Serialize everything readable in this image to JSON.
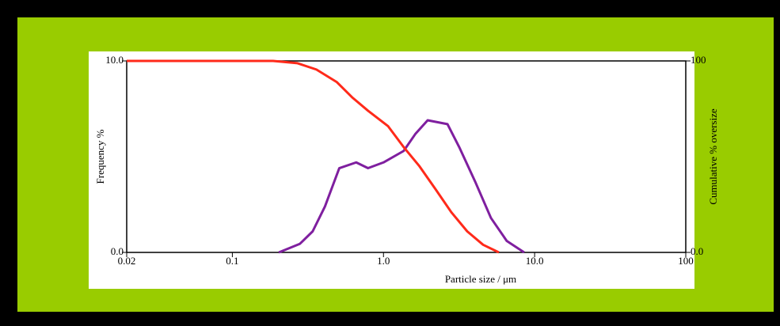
{
  "chart_data": {
    "type": "line",
    "xlabel": "Particle size / μm",
    "ylabel": "Frequency %",
    "y2label": "Cumulative % oversize",
    "xscale": "log",
    "xlim": [
      0.02,
      100
    ],
    "xticks": [
      0.02,
      0.1,
      {
        "value": 1,
        "label": "1.0"
      },
      {
        "value": 10,
        "label": "10.0"
      },
      100
    ],
    "ylim": [
      0,
      10
    ],
    "yticks": [
      {
        "value": 0,
        "label": "0.0"
      },
      {
        "value": 10,
        "label": "10.0"
      }
    ],
    "y2lim": [
      0,
      100
    ],
    "y2ticks": [
      {
        "value": 0,
        "label": "0.0"
      },
      100
    ],
    "series": [
      {
        "color": "#7f1f9f",
        "axis": "y",
        "x": [
          0.203,
          0.28,
          0.34,
          0.41,
          0.51,
          0.66,
          0.79,
          1.0,
          1.36,
          1.63,
          1.96,
          2.65,
          3.17,
          4.04,
          5.14,
          6.54,
          8.53
        ],
        "values": [
          0,
          0.45,
          1.1,
          2.4,
          4.4,
          4.7,
          4.4,
          4.7,
          5.3,
          6.2,
          6.9,
          6.7,
          5.5,
          3.7,
          1.8,
          0.6,
          0
        ]
      },
      {
        "color": "#ff2a1a",
        "axis": "y2",
        "x": [
          0.02,
          0.186,
          0.27,
          0.36,
          0.49,
          0.62,
          0.79,
          1.07,
          1.36,
          1.73,
          2.21,
          2.81,
          3.58,
          4.56,
          5.8
        ],
        "values": [
          100,
          100,
          98.8,
          95.5,
          89,
          81,
          74,
          66,
          55,
          45,
          33,
          21,
          11,
          4,
          0
        ]
      }
    ]
  }
}
